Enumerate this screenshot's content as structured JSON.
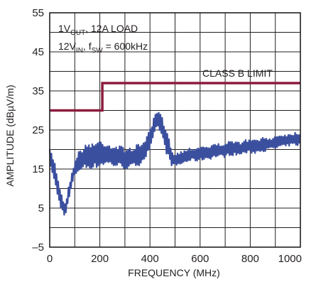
{
  "chart_data": {
    "type": "line",
    "title": "",
    "xlabel": "FREQUENCY (MHz)",
    "ylabel": "AMPLITUDE (dBµV/m)",
    "xlim": [
      0,
      1000
    ],
    "ylim": [
      -5,
      55
    ],
    "x_ticks": [
      0,
      100,
      200,
      300,
      400,
      500,
      600,
      700,
      800,
      900,
      1000
    ],
    "x_tick_labels": [
      "0",
      "",
      "200",
      "",
      "400",
      "",
      "600",
      "",
      "800",
      "",
      "1000"
    ],
    "y_ticks": [
      -5,
      0,
      5,
      10,
      15,
      20,
      25,
      30,
      35,
      40,
      45,
      50,
      55
    ],
    "y_tick_labels": [
      "–5",
      "",
      "5",
      "",
      "15",
      "",
      "25",
      "",
      "35",
      "",
      "45",
      "",
      "55"
    ],
    "grid": true,
    "annotations": {
      "line1": {
        "a": "1V",
        "a_sub": "OUT",
        "b": ", 12A LOAD"
      },
      "line2": {
        "a": "12V",
        "a_sub": "IN",
        "b": ", f",
        "b_sub": "SW",
        "c": " = 600kHz"
      },
      "limit_label": "CLASS B LIMIT"
    },
    "colors": {
      "emission": "#3b4f9f",
      "limit": "#8c1c3e",
      "grid": "#231f20"
    },
    "series": [
      {
        "role": "limit",
        "x": [
          0,
          210,
          210,
          1000
        ],
        "y": [
          30,
          30,
          37,
          37
        ]
      },
      {
        "role": "emission",
        "x": [
          0,
          10,
          20,
          30,
          40,
          50,
          55,
          60,
          65,
          70,
          80,
          90,
          100,
          110,
          120,
          140,
          160,
          180,
          200,
          220,
          240,
          260,
          280,
          300,
          320,
          340,
          360,
          380,
          400,
          410,
          420,
          430,
          440,
          450,
          460,
          470,
          480,
          490,
          500,
          520,
          540,
          560,
          580,
          600,
          620,
          640,
          660,
          680,
          700,
          720,
          740,
          760,
          780,
          800,
          820,
          840,
          860,
          880,
          900,
          920,
          940,
          960,
          980,
          1000
        ],
        "y_max": [
          20,
          19,
          17,
          14,
          11,
          8,
          7,
          6.5,
          7,
          9,
          12,
          15,
          17,
          19,
          20,
          21,
          22,
          22,
          22.5,
          22,
          21.5,
          21,
          21,
          20.5,
          20.5,
          21,
          21.5,
          23,
          25,
          27,
          29,
          30,
          29.5,
          28,
          26,
          24,
          22,
          20,
          19,
          19.5,
          20,
          20.5,
          20.5,
          21,
          21,
          21,
          21.5,
          21.5,
          22,
          22,
          22,
          22,
          22.5,
          22.5,
          22.5,
          23,
          23,
          23,
          23.5,
          24,
          24,
          24,
          24.5,
          24.5
        ],
        "y_min": [
          15,
          14,
          11,
          8,
          5.5,
          4,
          3.5,
          3,
          3.5,
          5,
          8,
          11,
          13,
          14,
          14.5,
          15,
          15,
          15,
          15.5,
          16,
          16,
          15.5,
          15.5,
          15,
          15,
          15.5,
          16,
          17.5,
          19.5,
          21.5,
          24,
          25.5,
          24.5,
          22.5,
          20,
          18,
          16.5,
          15.5,
          15.5,
          16,
          16.5,
          17,
          17,
          17,
          17.5,
          17.5,
          18,
          18,
          18,
          18.5,
          18.5,
          18.5,
          19,
          19,
          19,
          19.5,
          19.5,
          20,
          20,
          20.5,
          20.5,
          21,
          21,
          21
        ]
      }
    ]
  }
}
